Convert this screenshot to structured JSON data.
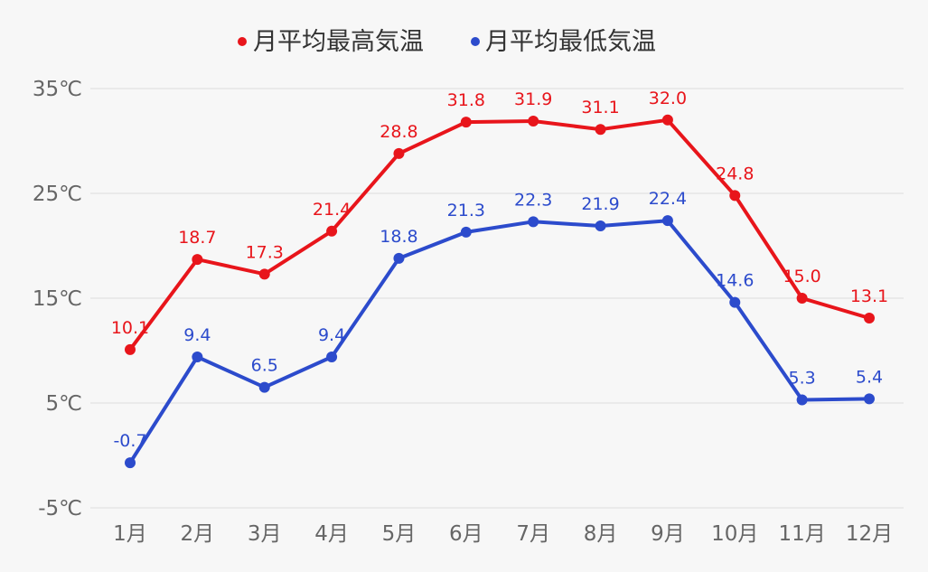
{
  "chart_data": {
    "type": "line",
    "title": "",
    "xlabel": "",
    "ylabel": "",
    "categories": [
      "1月",
      "2月",
      "3月",
      "4月",
      "5月",
      "6月",
      "7月",
      "8月",
      "9月",
      "10月",
      "11月",
      "12月"
    ],
    "y_ticks": [
      -5,
      5,
      15,
      25,
      35
    ],
    "y_tick_labels": [
      "-5℃",
      "5℃",
      "15℃",
      "25℃",
      "35℃"
    ],
    "ylim": [
      -5,
      35
    ],
    "grid": true,
    "legend_position": "top-center",
    "series": [
      {
        "name": "月平均最高気温",
        "color": "#e8151b",
        "values": [
          10.1,
          18.7,
          17.3,
          21.4,
          28.8,
          31.8,
          31.9,
          31.1,
          32.0,
          24.8,
          15.0,
          13.1
        ],
        "labels": [
          "10.1",
          "18.7",
          "17.3",
          "21.4",
          "28.8",
          "31.8",
          "31.9",
          "31.1",
          "32.0",
          "24.8",
          "15.0",
          "13.1"
        ]
      },
      {
        "name": "月平均最低気温",
        "color": "#2c4bcc",
        "values": [
          -0.7,
          9.4,
          6.5,
          9.4,
          18.8,
          21.3,
          22.3,
          21.9,
          22.4,
          14.6,
          5.3,
          5.4
        ],
        "labels": [
          "-0.7",
          "9.4",
          "6.5",
          "9.4",
          "18.8",
          "21.3",
          "22.3",
          "21.9",
          "22.4",
          "14.6",
          "5.3",
          "5.4"
        ]
      }
    ]
  }
}
